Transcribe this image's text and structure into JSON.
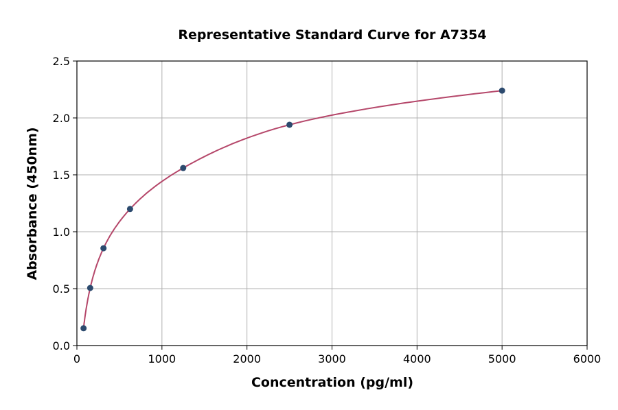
{
  "chart_data": {
    "type": "scatter",
    "title": "Representative Standard Curve for A7354",
    "xlabel": "Concentration (pg/ml)",
    "ylabel": "Absorbance (450nm)",
    "xlim": [
      0,
      6000
    ],
    "ylim": [
      0,
      2.5
    ],
    "xticks": [
      0,
      1000,
      2000,
      3000,
      4000,
      5000,
      6000
    ],
    "yticks": [
      "0.0",
      "0.5",
      "1.0",
      "1.5",
      "2.0",
      "2.5"
    ],
    "grid": true,
    "x": [
      78.125,
      156.25,
      312.5,
      625,
      1250,
      2500,
      5000
    ],
    "y": [
      0.152,
      0.506,
      0.855,
      1.2,
      1.56,
      1.94,
      2.24
    ],
    "fit_line": true,
    "colors": {
      "points": "#2c4a6e",
      "curve": "#b5476a",
      "grid": "#b0b0b0"
    }
  }
}
